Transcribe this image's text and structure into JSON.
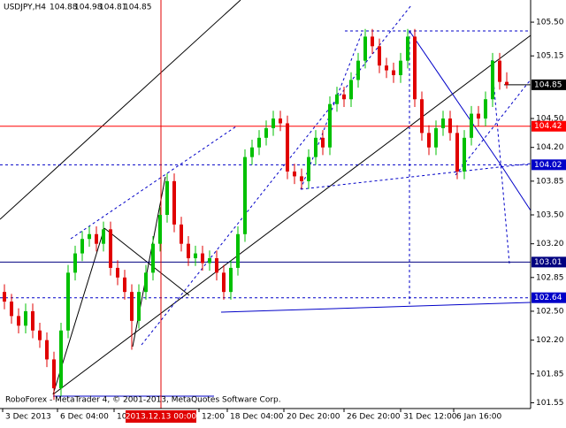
{
  "chart_data": {
    "type": "candlestick",
    "title": "USDJPY,H4",
    "footer": "RoboForex - MetaTrader 4, © 2001-2013, MetaQuotes Software Corp.",
    "open": [
      102.7,
      102.6,
      102.45,
      102.35,
      102.5,
      102.3,
      102.2,
      102.0,
      101.7,
      102.3,
      102.9,
      103.1,
      103.25,
      103.3,
      103.2,
      103.35,
      102.95,
      102.85,
      102.7,
      102.4,
      102.7,
      102.9,
      103.2,
      103.5,
      103.85,
      103.4,
      103.2,
      103.05,
      103.1,
      103.0,
      103.05,
      102.9,
      102.7,
      102.95,
      103.3,
      104.1,
      104.2,
      104.3,
      104.4,
      104.5,
      104.45,
      103.95,
      103.9,
      103.85,
      104.1,
      104.3,
      104.2,
      104.65,
      104.75,
      104.7,
      104.9,
      105.1,
      105.35,
      105.25,
      105.05,
      105.0,
      104.95,
      105.1,
      105.35,
      104.7,
      104.35,
      104.2,
      104.4,
      104.5,
      104.35,
      103.95,
      104.3,
      104.55,
      104.5,
      104.7,
      105.1,
      104.88
    ],
    "high": [
      102.78,
      102.68,
      102.53,
      102.58,
      102.58,
      102.38,
      102.28,
      102.08,
      102.38,
      102.98,
      103.18,
      103.33,
      103.38,
      103.38,
      103.43,
      103.43,
      103.03,
      102.93,
      102.78,
      102.78,
      102.98,
      103.28,
      103.58,
      103.93,
      103.93,
      103.48,
      103.28,
      103.18,
      103.18,
      103.13,
      103.13,
      102.98,
      103.03,
      103.38,
      104.18,
      104.28,
      104.38,
      104.48,
      104.58,
      104.58,
      104.53,
      104.03,
      103.98,
      104.18,
      104.38,
      104.38,
      104.73,
      104.83,
      104.83,
      104.98,
      105.18,
      105.43,
      105.43,
      105.33,
      105.13,
      105.08,
      105.18,
      105.43,
      105.43,
      104.78,
      104.43,
      104.48,
      104.58,
      104.58,
      104.43,
      104.38,
      104.63,
      104.63,
      104.78,
      105.18,
      105.18,
      104.98
    ],
    "low": [
      102.52,
      102.37,
      102.27,
      102.27,
      102.22,
      102.12,
      101.92,
      101.58,
      101.62,
      102.22,
      102.82,
      103.02,
      103.17,
      103.12,
      103.12,
      102.87,
      102.77,
      102.62,
      102.1,
      102.32,
      102.62,
      102.82,
      103.12,
      103.42,
      103.32,
      103.12,
      102.97,
      102.97,
      102.92,
      102.92,
      102.82,
      102.62,
      102.62,
      102.87,
      103.22,
      104.02,
      104.12,
      104.22,
      104.32,
      104.37,
      103.87,
      103.82,
      103.77,
      103.77,
      104.02,
      104.12,
      104.12,
      104.57,
      104.62,
      104.62,
      104.82,
      105.02,
      105.17,
      104.97,
      104.92,
      104.87,
      104.87,
      105.02,
      104.62,
      104.27,
      104.12,
      104.12,
      104.32,
      104.27,
      103.87,
      103.87,
      104.22,
      104.42,
      104.42,
      104.62,
      104.8,
      104.81
    ],
    "close": [
      102.6,
      102.45,
      102.35,
      102.5,
      102.3,
      102.2,
      102.0,
      101.7,
      102.3,
      102.9,
      103.1,
      103.25,
      103.3,
      103.2,
      103.35,
      102.95,
      102.85,
      102.7,
      102.4,
      102.7,
      102.9,
      103.2,
      103.5,
      103.85,
      103.4,
      103.2,
      103.05,
      103.1,
      103.0,
      103.05,
      102.9,
      102.7,
      102.95,
      103.3,
      104.1,
      104.2,
      104.3,
      104.4,
      104.5,
      104.45,
      103.95,
      103.9,
      103.85,
      104.1,
      104.3,
      104.2,
      104.65,
      104.75,
      104.7,
      104.9,
      105.1,
      105.35,
      105.25,
      105.05,
      105.0,
      104.95,
      105.1,
      105.35,
      104.7,
      104.35,
      104.2,
      104.4,
      104.5,
      104.35,
      103.95,
      104.3,
      104.55,
      104.5,
      104.7,
      105.1,
      104.88,
      104.85
    ],
    "up_color": "#00c000",
    "down_color": "#e00000",
    "ylim": [
      101.49,
      105.73
    ],
    "yticks": [
      {
        "value": 105.5,
        "label": "105.50"
      },
      105.15,
      {
        "value": 104.5,
        "label": "104.50"
      },
      {
        "value": 104.2,
        "label": "104.20"
      },
      103.85,
      {
        "value": 103.5,
        "label": "103.50"
      },
      {
        "value": 103.2,
        "label": "103.20"
      },
      102.85,
      {
        "value": 102.5,
        "label": "102.50"
      },
      {
        "value": 102.2,
        "label": "102.20"
      },
      101.85,
      101.55
    ],
    "xlim": [
      -0.625,
      74.375
    ],
    "xticks": [
      {
        "value": -0.25,
        "label": "3 Dec 2013"
      },
      {
        "value": 7.5,
        "label": "6 Dec 04:00"
      },
      {
        "value": 15.5,
        "label": "10"
      },
      {
        "value": 27.5,
        "label": "12:00"
      },
      {
        "value": 31.5,
        "label": "18 Dec 04:00"
      },
      {
        "value": 39.5,
        "label": "20 Dec 20:00"
      },
      {
        "value": 48,
        "label": "26 Dec 20:00"
      },
      {
        "value": 56,
        "label": "31 Dec 12:00"
      },
      {
        "value": 63.5,
        "label": "6 Jan 16:00"
      }
    ],
    "cursor": {
      "value": 22.125,
      "label": "2013.12.13 00:00",
      "color": "#e00000"
    },
    "price": {
      "value": 104.85,
      "color": "#000000"
    },
    "levels": [
      {
        "value": 104.42,
        "color": "#ff0000",
        "style": "solid"
      },
      {
        "value": 104.02,
        "color": "#0000c8",
        "style": "dashed"
      },
      {
        "value": 103.01,
        "color": "#000080",
        "style": "solid"
      },
      {
        "value": 102.64,
        "color": "#0000c8",
        "style": "dashed"
      }
    ]
  }
}
